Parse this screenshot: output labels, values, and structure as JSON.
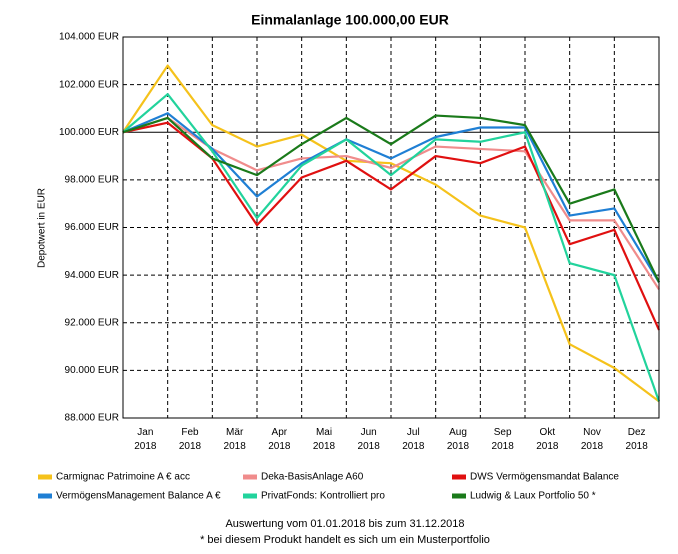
{
  "chart_data": {
    "type": "line",
    "title": "Einmalanlage 100.000,00 EUR",
    "y_label": "Depotwert in EUR",
    "categories": [
      null,
      [
        "Jan",
        "2018"
      ],
      [
        "Feb",
        "2018"
      ],
      [
        "Mär",
        "2018"
      ],
      [
        "Apr",
        "2018"
      ],
      [
        "Mai",
        "2018"
      ],
      [
        "Jun",
        "2018"
      ],
      [
        "Jul",
        "2018"
      ],
      [
        "Aug",
        "2018"
      ],
      [
        "Sep",
        "2018"
      ],
      [
        "Okt",
        "2018"
      ],
      [
        "Nov",
        "2018"
      ],
      [
        "Dez",
        "2018"
      ]
    ],
    "ylim": [
      88000,
      104000
    ],
    "yticks": [
      {
        "value": 88000,
        "label": "88.000 EUR"
      },
      {
        "value": 90000,
        "label": "90.000 EUR"
      },
      {
        "value": 92000,
        "label": "92.000 EUR"
      },
      {
        "value": 94000,
        "label": "94.000 EUR"
      },
      {
        "value": 96000,
        "label": "96.000 EUR"
      },
      {
        "value": 98000,
        "label": "98.000 EUR"
      },
      {
        "value": 100000,
        "label": "100.000 EUR"
      },
      {
        "value": 102000,
        "label": "102.000 EUR"
      },
      {
        "value": 104000,
        "label": "104.000 EUR"
      }
    ],
    "grid": true,
    "legend": "bottom",
    "series": [
      {
        "name": "Carmignac Patrimoine A € acc",
        "color": "#f5c21b",
        "values": [
          100000,
          102800,
          100300,
          99400,
          99900,
          98800,
          98700,
          97800,
          96500,
          96000,
          91100,
          90100,
          88700
        ]
      },
      {
        "name": "Deka-BasisAnlage A60",
        "color": "#f08c8c",
        "values": [
          100000,
          100600,
          99300,
          98400,
          98900,
          99000,
          98500,
          99400,
          99300,
          99200,
          96300,
          96300,
          93400
        ]
      },
      {
        "name": "DWS Vermögensmandat Balance",
        "color": "#e01010",
        "values": [
          100000,
          100400,
          98900,
          96100,
          98100,
          98800,
          97600,
          99000,
          98700,
          99400,
          95300,
          95900,
          91700
        ]
      },
      {
        "name": "VermögensManagement Balance A €",
        "color": "#1f7fd4",
        "values": [
          100000,
          100800,
          99300,
          97300,
          98700,
          99700,
          98900,
          99800,
          100200,
          100200,
          96500,
          96800,
          93700
        ]
      },
      {
        "name": "PrivatFonds: Kontrolliert pro",
        "color": "#22d39c",
        "values": [
          100000,
          101600,
          99200,
          96400,
          98600,
          99700,
          98200,
          99700,
          99600,
          100000,
          94500,
          94000,
          88700
        ]
      },
      {
        "name": "Ludwig & Laux Portfolio 50  *",
        "color": "#1a7a1a",
        "values": [
          100000,
          100600,
          98900,
          98200,
          99500,
          100600,
          99500,
          100700,
          100600,
          100300,
          97000,
          97600,
          93700
        ]
      }
    ],
    "footnotes": [
      "Auswertung vom 01.01.2018 bis zum 31.12.2018",
      "* bei diesem Produkt handelt es sich um ein Musterportfolio"
    ]
  }
}
